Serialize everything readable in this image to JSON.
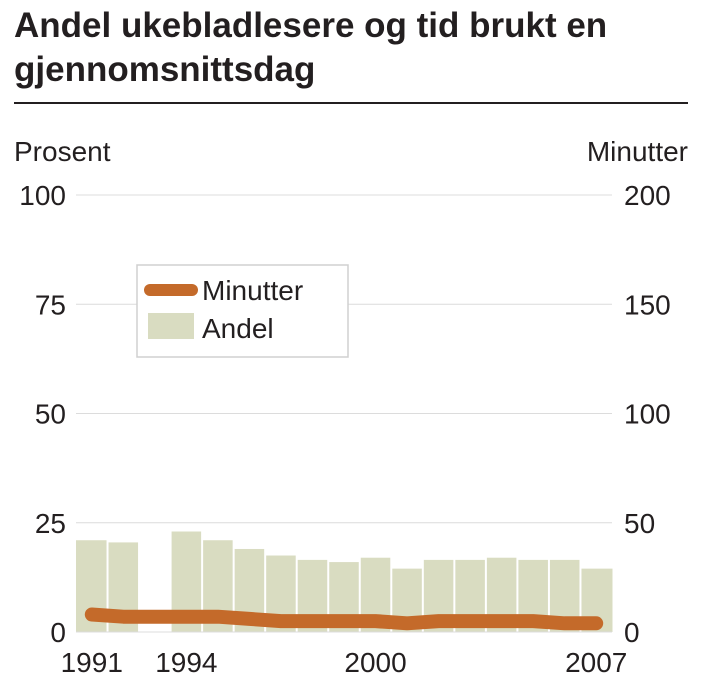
{
  "colors": {
    "andel": "#d9dcc1",
    "minutter": "#c46a2a",
    "plot_bg": "#ffffff",
    "text": "#231f20"
  },
  "chart_data": {
    "type": "bar",
    "title": "Andel ukebladlesere og tid brukt en gjennomsnittsdag",
    "ylabel": "Prosent",
    "y2label": "Minutter",
    "ylim": [
      0,
      100
    ],
    "y2lim": [
      0,
      200
    ],
    "yticks": [
      "0",
      "25",
      "50",
      "75",
      "100"
    ],
    "y2ticks": [
      "0",
      "50",
      "100",
      "150",
      "200"
    ],
    "x_tick_labels": [
      "1991",
      "1994",
      "2000",
      "2007"
    ],
    "categories": [
      1991,
      1992,
      1993,
      1994,
      1995,
      1996,
      1997,
      1998,
      1999,
      2000,
      2001,
      2002,
      2003,
      2004,
      2005,
      2006,
      2007
    ],
    "grid": true,
    "legend_position": "top-left",
    "series": [
      {
        "name": "Andel",
        "axis": "left",
        "kind": "area",
        "values": [
          21,
          20.5,
          null,
          23,
          21,
          19,
          17.5,
          16.5,
          16,
          17,
          14.5,
          16.5,
          16.5,
          17,
          16.5,
          16.5,
          14.5
        ]
      },
      {
        "name": "Minutter",
        "axis": "right",
        "kind": "line",
        "values": [
          8,
          7,
          7,
          7,
          7,
          6,
          5,
          5,
          5,
          5,
          4,
          5,
          5,
          5,
          5,
          4,
          4
        ]
      }
    ]
  }
}
